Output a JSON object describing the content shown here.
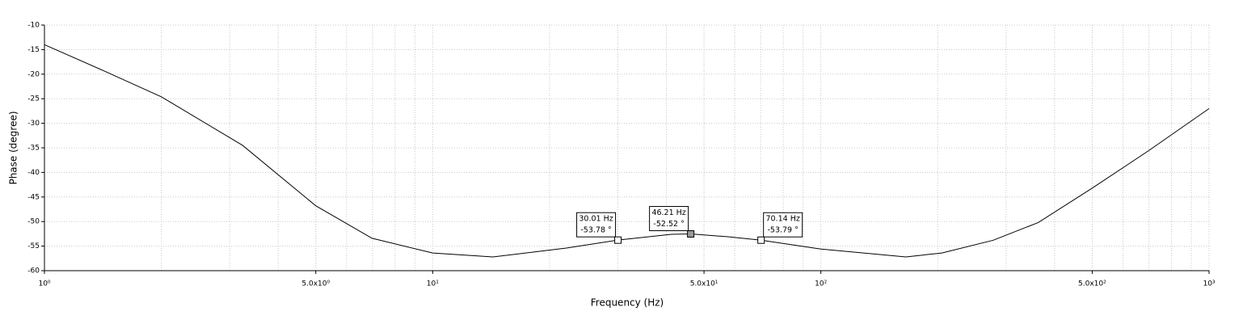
{
  "chart_data": {
    "type": "line",
    "x_label": "Frequency (Hz)",
    "y_label": "Phase (degree)",
    "x_log": true,
    "grid": true,
    "minor_grid": true,
    "xlim": [
      1,
      1000
    ],
    "ylim": [
      -60,
      -10
    ],
    "xticks": [
      {
        "value": 1,
        "label": "10⁰"
      },
      {
        "value": 5,
        "label": "5.0x10⁰"
      },
      {
        "value": 10,
        "label": "10¹"
      },
      {
        "value": 50,
        "label": "5.0x10¹"
      },
      {
        "value": 100,
        "label": "10²"
      },
      {
        "value": 500,
        "label": "5.0x10²"
      },
      {
        "value": 1000,
        "label": "10³"
      }
    ],
    "yticks": [
      -60,
      -55,
      -50,
      -45,
      -40,
      -35,
      -30,
      -25,
      -20,
      -15,
      -10
    ],
    "x": [
      1,
      1.43,
      2,
      3.24,
      5,
      6.98,
      10,
      14.3,
      22.1,
      30.01,
      41.2,
      46.21,
      57.6,
      70.14,
      100,
      165.5,
      205,
      278,
      363,
      500,
      698,
      1000
    ],
    "series": [
      {
        "color": "#000000",
        "values": [
          -14,
          -19.4,
          -24.6,
          -34.5,
          -46.8,
          -53.4,
          -56.4,
          -57.2,
          -55.4,
          -53.78,
          -52.6,
          -52.52,
          -53.1,
          -53.79,
          -55.6,
          -57.2,
          -56.4,
          -53.8,
          -50.2,
          -43.2,
          -35.6,
          -27
        ]
      }
    ],
    "annotations": [
      {
        "x": 30.01,
        "y": -53.78,
        "lines": [
          "30.01 Hz",
          "-53.78 °"
        ],
        "selected": false
      },
      {
        "x": 46.21,
        "y": -52.52,
        "lines": [
          "46.21 Hz",
          "-52.52 °"
        ],
        "selected": true
      },
      {
        "x": 70.14,
        "y": -53.79,
        "lines": [
          "70.14 Hz",
          "-53.79 °"
        ],
        "selected": false
      }
    ]
  }
}
